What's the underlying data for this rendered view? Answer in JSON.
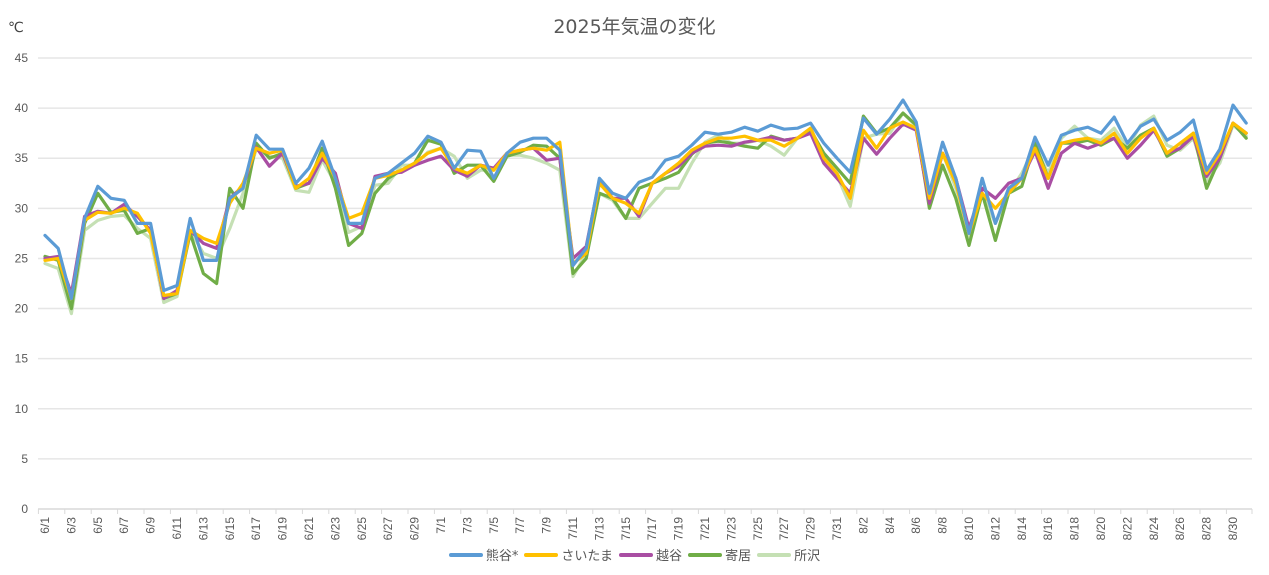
{
  "chart_data": {
    "type": "line",
    "title": "2025年気温の変化",
    "ylabel": "℃",
    "xlabel": "",
    "ylim": [
      0,
      45
    ],
    "yticks": [
      0,
      5,
      10,
      15,
      20,
      25,
      30,
      35,
      40,
      45
    ],
    "grid": true,
    "legend_position": "bottom",
    "x": [
      "6/1",
      "6/2",
      "6/3",
      "6/4",
      "6/5",
      "6/6",
      "6/7",
      "6/8",
      "6/9",
      "6/10",
      "6/11",
      "6/12",
      "6/13",
      "6/14",
      "6/15",
      "6/16",
      "6/17",
      "6/18",
      "6/19",
      "6/20",
      "6/21",
      "6/22",
      "6/23",
      "6/24",
      "6/25",
      "6/26",
      "6/27",
      "6/28",
      "6/29",
      "6/30",
      "7/1",
      "7/2",
      "7/3",
      "7/4",
      "7/5",
      "7/6",
      "7/7",
      "7/8",
      "7/9",
      "7/10",
      "7/11",
      "7/12",
      "7/13",
      "7/14",
      "7/15",
      "7/16",
      "7/17",
      "7/18",
      "7/19",
      "7/20",
      "7/21",
      "7/22",
      "7/23",
      "7/24",
      "7/25",
      "7/26",
      "7/27",
      "7/28",
      "7/29",
      "7/30",
      "7/31",
      "8/1",
      "8/2",
      "8/3",
      "8/4",
      "8/5",
      "8/6",
      "8/7",
      "8/8",
      "8/9",
      "8/10",
      "8/11",
      "8/12",
      "8/13",
      "8/14",
      "8/15",
      "8/16",
      "8/17",
      "8/18",
      "8/19",
      "8/20",
      "8/21",
      "8/22",
      "8/23",
      "8/24",
      "8/25",
      "8/26",
      "8/27",
      "8/28",
      "8/29",
      "8/30",
      "8/31"
    ],
    "xtick_labels": [
      "6/1",
      "6/3",
      "6/5",
      "6/7",
      "6/9",
      "6/11",
      "6/13",
      "6/15",
      "6/17",
      "6/19",
      "6/21",
      "6/23",
      "6/25",
      "6/27",
      "6/29",
      "7/1",
      "7/3",
      "7/5",
      "7/7",
      "7/9",
      "7/11",
      "7/13",
      "7/15",
      "7/17",
      "7/19",
      "7/21",
      "7/23",
      "7/25",
      "7/27",
      "7/29",
      "7/31",
      "8/2",
      "8/4",
      "8/6",
      "8/8",
      "8/10",
      "8/12",
      "8/14",
      "8/16",
      "8/18",
      "8/20",
      "8/22",
      "8/24",
      "8/26",
      "8/28",
      "8/30"
    ],
    "series": [
      {
        "name": "熊谷*",
        "color": "#5B9BD5",
        "values": [
          27.3,
          26.0,
          21.0,
          29.0,
          32.2,
          31.0,
          30.8,
          28.5,
          28.5,
          21.8,
          22.3,
          29.0,
          24.8,
          24.8,
          31.0,
          32.0,
          37.3,
          35.9,
          35.9,
          32.5,
          34.0,
          36.7,
          33.0,
          28.5,
          28.5,
          33.0,
          33.5,
          34.5,
          35.5,
          37.2,
          36.6,
          34.0,
          35.8,
          35.7,
          33.0,
          35.5,
          36.6,
          37.0,
          37.0,
          35.8,
          24.3,
          26.0,
          33.0,
          31.5,
          31.0,
          32.6,
          33.1,
          34.8,
          35.2,
          36.3,
          37.6,
          37.4,
          37.6,
          38.1,
          37.7,
          38.3,
          37.9,
          38.0,
          38.5,
          36.5,
          35.0,
          33.6,
          39.0,
          37.4,
          38.9,
          40.8,
          38.6,
          31.5,
          36.6,
          33.0,
          27.5,
          33.0,
          28.5,
          32.0,
          33.0,
          37.1,
          34.3,
          37.3,
          37.8,
          38.1,
          37.5,
          39.1,
          36.5,
          38.2,
          38.9,
          36.8,
          37.6,
          38.8,
          33.8,
          35.9,
          40.3,
          38.5
        ]
      },
      {
        "name": "さいたま",
        "color": "#FFC000",
        "values": [
          24.8,
          25.0,
          21.0,
          28.8,
          29.6,
          29.5,
          30.0,
          29.5,
          27.5,
          21.3,
          21.5,
          27.8,
          27.0,
          26.5,
          30.5,
          32.5,
          36.0,
          35.5,
          35.8,
          32.0,
          33.0,
          35.5,
          33.0,
          29.0,
          29.5,
          33.0,
          33.3,
          33.8,
          34.5,
          35.5,
          36.0,
          34.0,
          33.5,
          34.3,
          33.8,
          35.5,
          35.8,
          36.0,
          35.8,
          36.6,
          24.5,
          25.5,
          32.5,
          31.0,
          30.5,
          29.5,
          32.5,
          33.5,
          34.5,
          35.8,
          36.5,
          37.0,
          37.0,
          37.2,
          36.8,
          36.8,
          36.2,
          37.0,
          38.0,
          35.0,
          33.5,
          31.0,
          37.8,
          36.0,
          38.0,
          38.6,
          38.0,
          31.0,
          35.5,
          32.5,
          27.5,
          31.5,
          30.0,
          31.5,
          33.0,
          36.0,
          33.0,
          36.5,
          36.8,
          37.0,
          36.5,
          37.5,
          35.5,
          37.0,
          38.0,
          35.5,
          36.5,
          37.5,
          33.5,
          35.5,
          38.5,
          37.5
        ]
      },
      {
        "name": "越谷",
        "color": "#A94EA3",
        "values": [
          25.0,
          25.2,
          21.5,
          29.2,
          29.7,
          29.5,
          30.4,
          29.2,
          27.8,
          21.0,
          21.8,
          27.8,
          26.5,
          26.0,
          31.0,
          32.2,
          36.1,
          34.2,
          35.5,
          32.2,
          32.5,
          35.0,
          33.5,
          28.5,
          28.0,
          33.2,
          33.5,
          33.6,
          34.3,
          34.8,
          35.2,
          33.8,
          33.2,
          34.3,
          34.0,
          35.5,
          35.8,
          36.0,
          34.8,
          35.0,
          25.0,
          26.2,
          32.8,
          31.0,
          31.0,
          29.2,
          32.5,
          33.5,
          34.2,
          35.5,
          36.2,
          36.3,
          36.2,
          36.6,
          36.8,
          37.1,
          36.8,
          37.0,
          37.5,
          34.5,
          33.0,
          31.5,
          37.0,
          35.4,
          37.0,
          38.4,
          37.8,
          30.5,
          35.5,
          33.0,
          28.0,
          32.0,
          31.0,
          32.5,
          33.0,
          35.7,
          32.0,
          35.5,
          36.5,
          36.0,
          36.5,
          37.0,
          35.0,
          36.3,
          37.8,
          35.5,
          36.0,
          37.2,
          33.2,
          35.0,
          38.5,
          37.5
        ]
      },
      {
        "name": "寄居",
        "color": "#70AD47",
        "values": [
          25.2,
          24.8,
          20.0,
          28.5,
          31.5,
          29.6,
          29.8,
          27.5,
          28.0,
          21.0,
          21.5,
          27.5,
          23.5,
          22.5,
          32.0,
          30.0,
          36.5,
          35.0,
          35.5,
          32.0,
          32.5,
          36.0,
          32.0,
          26.3,
          27.5,
          31.5,
          33.0,
          33.8,
          34.5,
          36.8,
          36.4,
          33.5,
          34.3,
          34.3,
          32.7,
          35.2,
          35.6,
          36.3,
          36.2,
          35.0,
          23.5,
          25.0,
          31.5,
          31.0,
          29.0,
          32.0,
          32.5,
          33.0,
          33.6,
          35.4,
          36.5,
          36.7,
          36.5,
          36.2,
          36.0,
          37.2,
          36.8,
          37.0,
          37.8,
          35.5,
          34.0,
          32.5,
          39.2,
          37.5,
          38.0,
          39.5,
          38.3,
          30.0,
          34.3,
          31.0,
          26.3,
          31.5,
          26.8,
          31.5,
          32.2,
          36.5,
          33.0,
          36.5,
          36.5,
          36.8,
          36.3,
          37.0,
          36.0,
          37.3,
          38.0,
          35.2,
          36.0,
          37.5,
          32.0,
          35.0,
          38.5,
          37.0
        ]
      },
      {
        "name": "所沢",
        "color": "#C5E0B4",
        "values": [
          24.5,
          24.0,
          19.5,
          27.8,
          28.8,
          29.2,
          29.3,
          28.0,
          27.0,
          20.6,
          21.2,
          27.8,
          25.5,
          25.0,
          28.0,
          31.5,
          35.9,
          35.2,
          35.0,
          31.8,
          31.6,
          34.8,
          32.5,
          27.6,
          28.2,
          32.3,
          32.5,
          34.3,
          34.3,
          35.6,
          36.0,
          35.2,
          33.0,
          33.8,
          33.8,
          35.3,
          35.3,
          35.0,
          34.5,
          33.8,
          23.2,
          25.5,
          31.5,
          30.8,
          29.0,
          29.0,
          30.5,
          32.0,
          32.0,
          34.5,
          36.6,
          37.3,
          36.5,
          36.5,
          36.8,
          36.2,
          35.3,
          37.0,
          38.0,
          35.2,
          33.3,
          30.2,
          37.0,
          37.4,
          37.5,
          39.5,
          38.2,
          31.0,
          35.5,
          32.0,
          27.0,
          31.5,
          28.5,
          31.5,
          33.5,
          36.2,
          33.5,
          37.0,
          38.2,
          37.0,
          36.8,
          38.0,
          36.0,
          38.3,
          39.2,
          36.3,
          35.8,
          37.0,
          32.8,
          34.5,
          38.3,
          37.2
        ]
      }
    ]
  },
  "title": "2025年気温の変化",
  "unit_label": "℃",
  "legend": [
    {
      "label": "熊谷*",
      "color": "#5B9BD5"
    },
    {
      "label": "さいたま",
      "color": "#FFC000"
    },
    {
      "label": "越谷",
      "color": "#A94EA3"
    },
    {
      "label": "寄居",
      "color": "#70AD47"
    },
    {
      "label": "所沢",
      "color": "#C5E0B4"
    }
  ]
}
